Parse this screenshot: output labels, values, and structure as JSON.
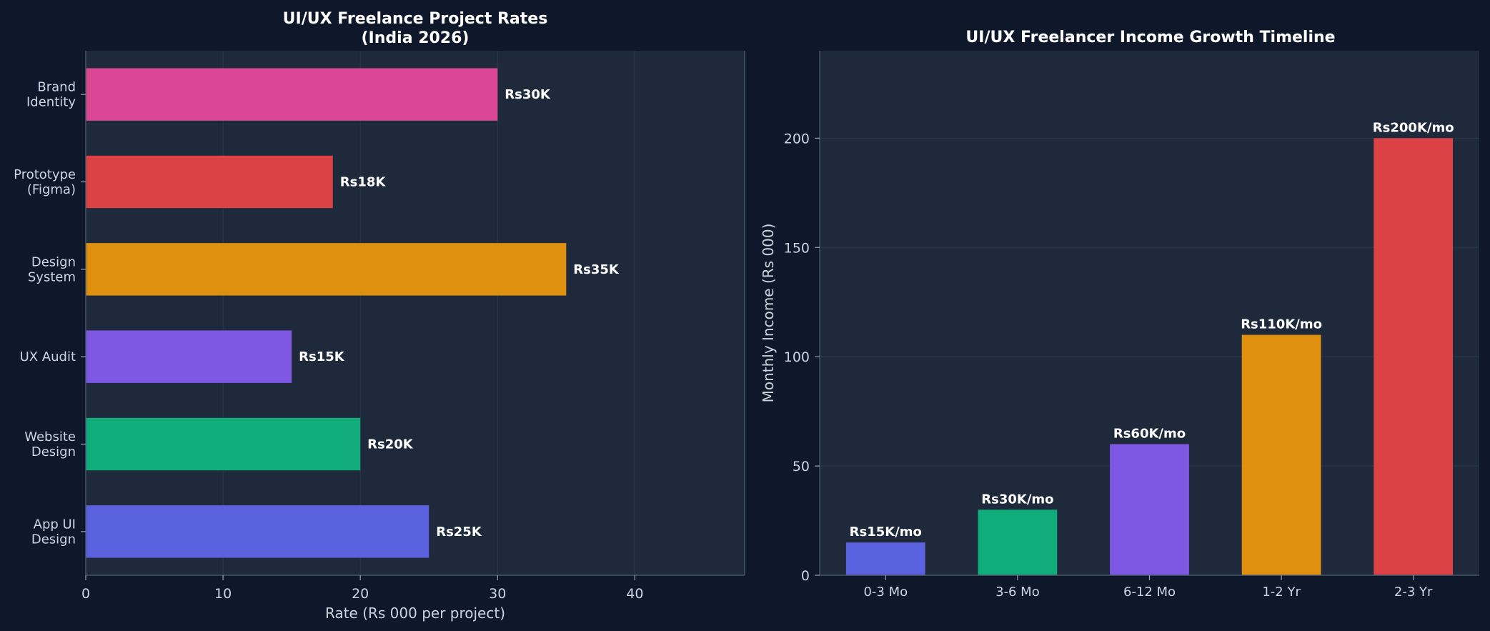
{
  "chart_data": [
    {
      "type": "bar",
      "orientation": "horizontal",
      "title_line1": "UI/UX Freelance Project Rates",
      "title_line2": "(India 2026)",
      "xlabel": "Rate (Rs 000 per project)",
      "ylabel": "",
      "xlim": [
        0,
        48
      ],
      "xticks": [
        "0",
        "10",
        "20",
        "30",
        "40"
      ],
      "grid": true,
      "categories": [
        [
          "App UI",
          "Design"
        ],
        [
          "Website",
          "Design"
        ],
        [
          "UX Audit"
        ],
        [
          "Design",
          "System"
        ],
        [
          "Prototype",
          "(Figma)"
        ],
        [
          "Brand",
          "Identity"
        ]
      ],
      "values": [
        25,
        20,
        15,
        35,
        18,
        30
      ],
      "labels": [
        "Rs25K",
        "Rs20K",
        "Rs15K",
        "Rs35K",
        "Rs18K",
        "Rs30K"
      ],
      "colors": [
        "#5b62e0",
        "#10ac7a",
        "#7e57e3",
        "#e0900f",
        "#dc4145",
        "#da4693"
      ]
    },
    {
      "type": "bar",
      "orientation": "vertical",
      "title": "UI/UX Freelancer Income Growth Timeline",
      "xlabel": "",
      "ylabel": "Monthly Income (Rs 000)",
      "ylim": [
        0,
        240
      ],
      "yticks": [
        "0",
        "50",
        "100",
        "150",
        "200"
      ],
      "grid": true,
      "categories": [
        "0-3 Mo",
        "3-6 Mo",
        "6-12 Mo",
        "1-2 Yr",
        "2-3 Yr"
      ],
      "values": [
        15,
        30,
        60,
        110,
        200
      ],
      "labels": [
        "Rs15K/mo",
        "Rs30K/mo",
        "Rs60K/mo",
        "Rs110K/mo",
        "Rs200K/mo"
      ],
      "colors": [
        "#5b62e0",
        "#10ac7a",
        "#7e57e3",
        "#e0900f",
        "#dc4145"
      ]
    }
  ],
  "theme": {
    "page_bg": "#0f172a",
    "plot_bg": "#1e293b"
  }
}
